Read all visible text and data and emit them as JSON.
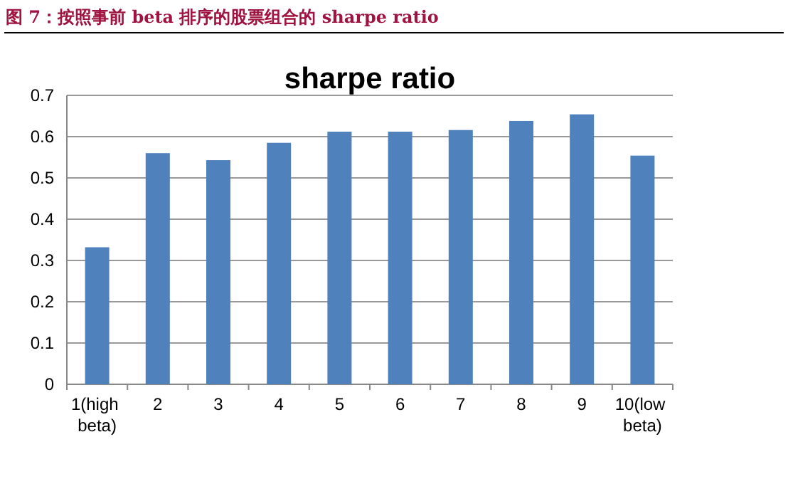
{
  "chart_data": {
    "type": "bar",
    "title": "图 7：按照事前 beta 排序的股票组合的 sharpe ratio",
    "subtitle": "sharpe ratio",
    "categories": [
      "1(high beta)",
      "2",
      "3",
      "4",
      "5",
      "6",
      "7",
      "8",
      "9",
      "10(low beta)"
    ],
    "values": [
      0.332,
      0.56,
      0.543,
      0.585,
      0.612,
      0.612,
      0.616,
      0.638,
      0.654,
      0.554
    ],
    "color": "#4f81bd",
    "ylim": [
      0,
      0.7
    ],
    "yticks": [
      0,
      0.1,
      0.2,
      0.3,
      0.4,
      0.5,
      0.6,
      0.7
    ],
    "grid": "y"
  }
}
